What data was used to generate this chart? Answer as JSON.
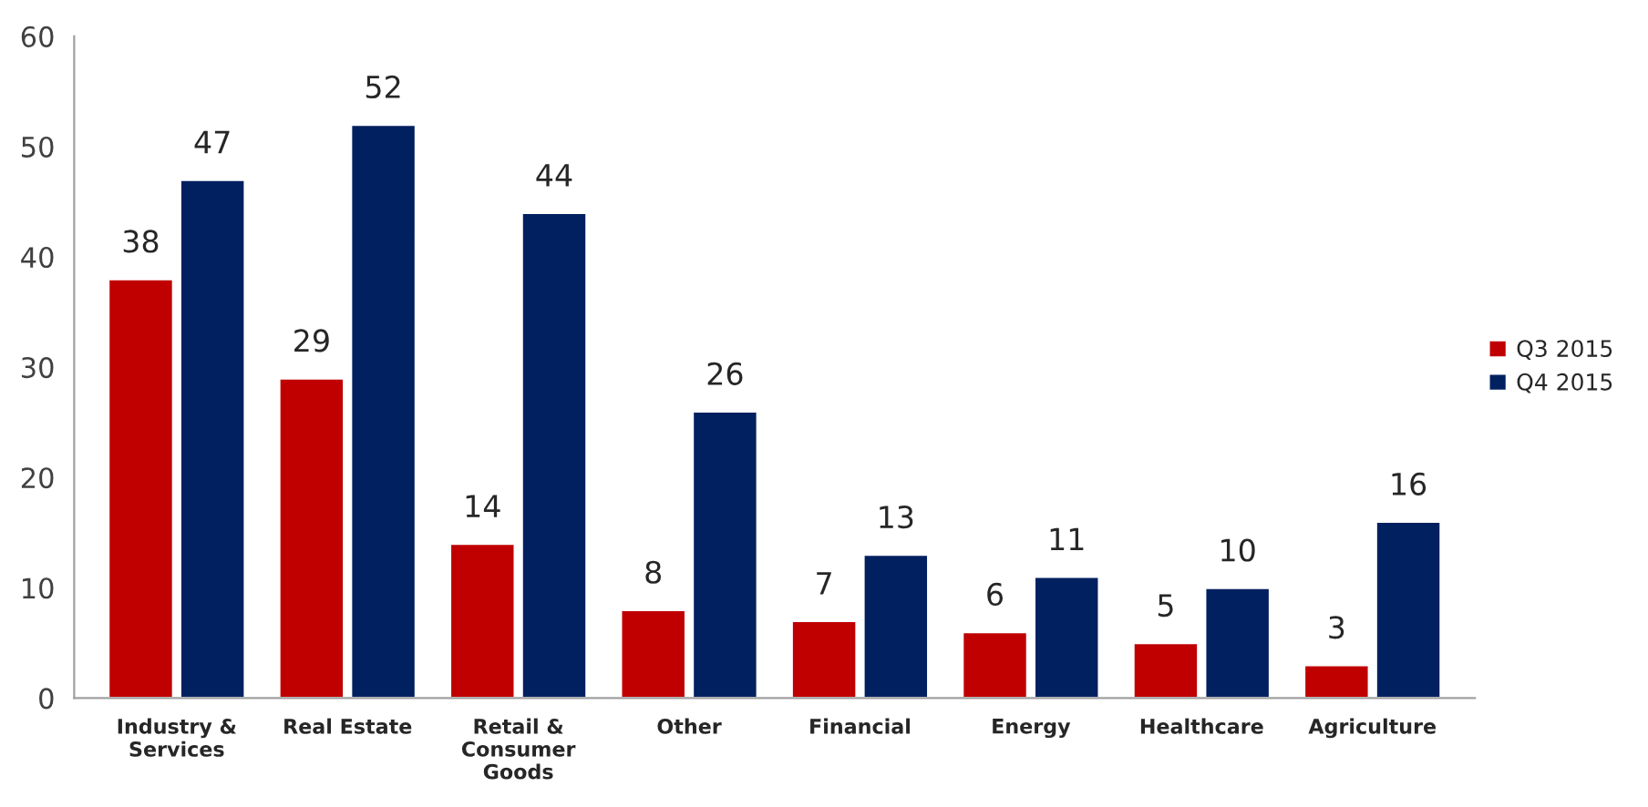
{
  "chart_data": {
    "type": "bar",
    "categories": [
      "Industry &\nServices",
      "Real Estate",
      "Retail &\nConsumer\nGoods",
      "Other",
      "Financial",
      "Energy",
      "Healthcare",
      "Agriculture"
    ],
    "series": [
      {
        "name": "Q3 2015",
        "color": "#c00000",
        "values": [
          38,
          29,
          14,
          8,
          7,
          6,
          5,
          3
        ]
      },
      {
        "name": "Q4 2015",
        "color": "#002060",
        "values": [
          47,
          52,
          44,
          26,
          13,
          11,
          10,
          16
        ]
      }
    ],
    "ylim": [
      0,
      60
    ],
    "yticks": [
      0,
      10,
      20,
      30,
      40,
      50,
      60
    ],
    "data_labels": true,
    "legend": "right",
    "grid": false
  }
}
